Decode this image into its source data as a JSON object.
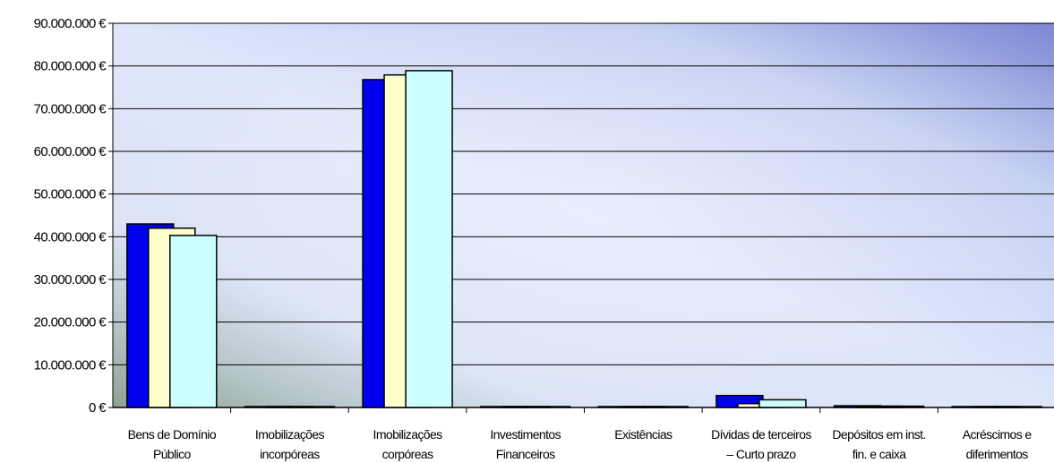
{
  "chart_data": {
    "type": "bar",
    "title": "",
    "xlabel": "",
    "ylabel": "",
    "ylim": [
      0,
      90000000
    ],
    "y_ticks": [
      "0 €",
      "10.000.000 €",
      "20.000.000 €",
      "30.000.000 €",
      "40.000.000 €",
      "50.000.000 €",
      "60.000.000 €",
      "70.000.000 €",
      "80.000.000 €",
      "90.000.000 €"
    ],
    "y_tick_values": [
      0,
      10000000,
      20000000,
      30000000,
      40000000,
      50000000,
      60000000,
      70000000,
      80000000,
      90000000
    ],
    "grid": true,
    "legend": "none",
    "categories": [
      [
        "Bens de Domínio",
        "Público"
      ],
      [
        "Imobilizações",
        "incorpóreas"
      ],
      [
        "Imobilizações",
        "corpóreas"
      ],
      [
        "Investimentos",
        "Financeiros"
      ],
      [
        "Existências"
      ],
      [
        "Dívidas de terceiros",
        "– Curto prazo"
      ],
      [
        "Depósitos em inst.",
        "fin. e caixa"
      ],
      [
        "Acréscimos e",
        "diferimentos"
      ]
    ],
    "series": [
      {
        "color": "#0000ee",
        "values": [
          43000000,
          0,
          76800000,
          0,
          0,
          2800000,
          400000,
          0
        ]
      },
      {
        "color": "#ffffcc",
        "values": [
          42000000,
          0,
          77900000,
          0,
          0,
          900000,
          300000,
          0
        ]
      },
      {
        "color": "#ccffff",
        "values": [
          40300000,
          0,
          78900000,
          0,
          0,
          1800000,
          300000,
          0
        ]
      }
    ],
    "colors": {
      "gridline": "#000000",
      "bar_outline": "#000000"
    }
  }
}
